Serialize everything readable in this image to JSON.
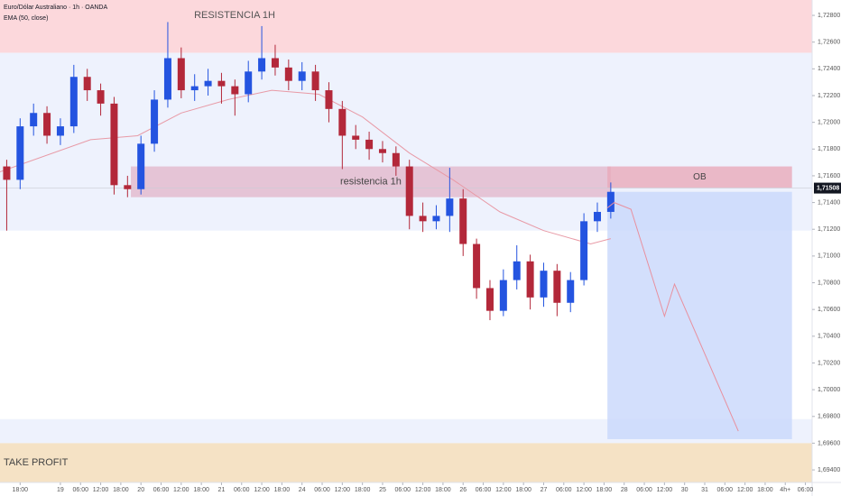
{
  "chart_data": {
    "type": "candlestick",
    "title": "Euro/Dólar Australiano · 1h · OANDA",
    "subtitle": "EMA (50, close)",
    "ylim": [
      1.69306,
      1.72915
    ],
    "xlim": [
      0,
      242
    ],
    "grid": false,
    "up_color": "#2454e0",
    "down_color": "#b3283a",
    "yticks": [
      {
        "value": 1.728,
        "label": "1,72800"
      },
      {
        "value": 1.726,
        "label": "1,72600"
      },
      {
        "value": 1.724,
        "label": "1,72400"
      },
      {
        "value": 1.722,
        "label": "1,72200"
      },
      {
        "value": 1.72,
        "label": "1,72000"
      },
      {
        "value": 1.718,
        "label": "1,71800"
      },
      {
        "value": 1.716,
        "label": "1,71600"
      },
      {
        "value": 1.714,
        "label": "1,71400"
      },
      {
        "value": 1.712,
        "label": "1,71200"
      },
      {
        "value": 1.71,
        "label": "1,71000"
      },
      {
        "value": 1.708,
        "label": "1,70800"
      },
      {
        "value": 1.706,
        "label": "1,70600"
      },
      {
        "value": 1.704,
        "label": "1,70400"
      },
      {
        "value": 1.702,
        "label": "1,70200"
      },
      {
        "value": 1.7,
        "label": "1,70000"
      },
      {
        "value": 1.698,
        "label": "1,69800"
      },
      {
        "value": 1.696,
        "label": "1,69600"
      },
      {
        "value": 1.694,
        "label": "1,69400"
      }
    ],
    "xticks": [
      {
        "value": 6,
        "label": "18:00"
      },
      {
        "value": 18,
        "label": "19"
      },
      {
        "value": 24,
        "label": "06:00"
      },
      {
        "value": 30,
        "label": "12:00"
      },
      {
        "value": 36,
        "label": "18:00"
      },
      {
        "value": 42,
        "label": "20"
      },
      {
        "value": 48,
        "label": "06:00"
      },
      {
        "value": 54,
        "label": "12:00"
      },
      {
        "value": 60,
        "label": "18:00"
      },
      {
        "value": 66,
        "label": "21"
      },
      {
        "value": 72,
        "label": "06:00"
      },
      {
        "value": 78,
        "label": "12:00"
      },
      {
        "value": 84,
        "label": "18:00"
      },
      {
        "value": 90,
        "label": "24"
      },
      {
        "value": 96,
        "label": "06:00"
      },
      {
        "value": 102,
        "label": "12:00"
      },
      {
        "value": 108,
        "label": "18:00"
      },
      {
        "value": 114,
        "label": "25"
      },
      {
        "value": 120,
        "label": "06:00"
      },
      {
        "value": 126,
        "label": "12:00"
      },
      {
        "value": 132,
        "label": "18:00"
      },
      {
        "value": 138,
        "label": "26"
      },
      {
        "value": 144,
        "label": "06:00"
      },
      {
        "value": 150,
        "label": "12:00"
      },
      {
        "value": 156,
        "label": "18:00"
      },
      {
        "value": 162,
        "label": "27"
      },
      {
        "value": 168,
        "label": "06:00"
      },
      {
        "value": 174,
        "label": "12:00"
      },
      {
        "value": 180,
        "label": "18:00"
      },
      {
        "value": 186,
        "label": "28"
      },
      {
        "value": 192,
        "label": "06:00"
      },
      {
        "value": 198,
        "label": "12:00"
      },
      {
        "value": 204,
        "label": "30"
      },
      {
        "value": 210,
        "label": "31"
      },
      {
        "value": 216,
        "label": "06:00"
      },
      {
        "value": 222,
        "label": "12:00"
      },
      {
        "value": 228,
        "label": "18:00"
      },
      {
        "value": 234,
        "label": "4h+"
      },
      {
        "value": 240,
        "label": "06:00"
      }
    ],
    "last_price": {
      "value": 1.71508,
      "label": "1,71508"
    },
    "zones": [
      {
        "label": "RESISTENCIA 1H",
        "range": [
          1.7252,
          1.7292
        ],
        "color": "#fcd8dc"
      },
      {
        "range": [
          1.7119,
          1.7252
        ],
        "color": "#eef2fd"
      },
      {
        "range": [
          1.696,
          1.6978
        ],
        "color": "#eef2fd"
      },
      {
        "label": "TAKE PROFIT",
        "range": [
          1.693,
          1.696
        ],
        "color": "#f5e2c5"
      },
      {
        "label": "resistencia 1h",
        "range": [
          1.7144,
          1.7167
        ],
        "x": [
          39,
          182
        ],
        "color": "#e2b8cc"
      },
      {
        "range": [
          1.6963,
          1.7148
        ],
        "x": [
          181,
          236
        ],
        "color": "#c8d7fb"
      },
      {
        "label": "OB",
        "range": [
          1.7151,
          1.7167
        ],
        "x": [
          181,
          236
        ],
        "color": "#e8a9b9"
      }
    ],
    "x": [
      2,
      6,
      10,
      14,
      18,
      22,
      26,
      30,
      34,
      38,
      42,
      46,
      50,
      54,
      58,
      62,
      66,
      70,
      74,
      78,
      82,
      86,
      90,
      94,
      98,
      102,
      106,
      110,
      114,
      118,
      122,
      126,
      130,
      134,
      138,
      142,
      146,
      150,
      154,
      158,
      162,
      166,
      170,
      174,
      178,
      182
    ],
    "open": [
      1.7167,
      1.7157,
      1.7197,
      1.7207,
      1.719,
      1.7197,
      1.7234,
      1.7224,
      1.7214,
      1.7153,
      1.715,
      1.7184,
      1.7217,
      1.7248,
      1.7224,
      1.7227,
      1.7231,
      1.7227,
      1.7221,
      1.7238,
      1.7248,
      1.7241,
      1.7231,
      1.7238,
      1.7224,
      1.721,
      1.719,
      1.7187,
      1.718,
      1.7177,
      1.7167,
      1.713,
      1.7126,
      1.713,
      1.7143,
      1.7109,
      1.7076,
      1.7059,
      1.7082,
      1.7096,
      1.7069,
      1.7089,
      1.7065,
      1.7082,
      1.7126,
      1.7133
    ],
    "high": [
      1.7172,
      1.7203,
      1.7214,
      1.7212,
      1.7203,
      1.7243,
      1.724,
      1.7229,
      1.7219,
      1.716,
      1.719,
      1.7224,
      1.7275,
      1.7256,
      1.7236,
      1.724,
      1.7237,
      1.7232,
      1.7246,
      1.7272,
      1.7258,
      1.7247,
      1.7245,
      1.7243,
      1.723,
      1.7216,
      1.7198,
      1.7193,
      1.7186,
      1.7182,
      1.7172,
      1.714,
      1.7138,
      1.7166,
      1.715,
      1.7113,
      1.7082,
      1.709,
      1.7108,
      1.7101,
      1.7095,
      1.7094,
      1.7088,
      1.7132,
      1.714,
      1.7155
    ],
    "low": [
      1.7119,
      1.715,
      1.719,
      1.7184,
      1.7183,
      1.7192,
      1.7216,
      1.7205,
      1.7146,
      1.7144,
      1.7146,
      1.7178,
      1.7211,
      1.7218,
      1.7216,
      1.722,
      1.7214,
      1.7205,
      1.7215,
      1.7232,
      1.7235,
      1.7224,
      1.7224,
      1.7216,
      1.72,
      1.7165,
      1.718,
      1.7172,
      1.717,
      1.716,
      1.712,
      1.7118,
      1.712,
      1.7118,
      1.71,
      1.7068,
      1.7052,
      1.7055,
      1.7075,
      1.706,
      1.7062,
      1.7055,
      1.7058,
      1.7078,
      1.7118,
      1.7128
    ],
    "close": [
      1.7157,
      1.7197,
      1.7207,
      1.719,
      1.7197,
      1.7234,
      1.7224,
      1.7214,
      1.7153,
      1.715,
      1.7184,
      1.7217,
      1.7248,
      1.7224,
      1.7227,
      1.7231,
      1.7227,
      1.7221,
      1.7238,
      1.7248,
      1.7241,
      1.7231,
      1.7238,
      1.7224,
      1.721,
      1.719,
      1.7187,
      1.718,
      1.7177,
      1.7167,
      1.713,
      1.7126,
      1.713,
      1.7143,
      1.7109,
      1.7076,
      1.7059,
      1.7082,
      1.7096,
      1.7069,
      1.7089,
      1.7065,
      1.7082,
      1.7126,
      1.7133,
      1.7148
    ],
    "ema": {
      "color": "#e89aa6",
      "x": [
        0,
        27,
        41,
        54,
        68,
        81,
        95,
        108,
        122,
        135,
        149,
        162,
        176,
        182
      ],
      "values": [
        1.7163,
        1.7187,
        1.719,
        1.7207,
        1.7217,
        1.7224,
        1.7221,
        1.7204,
        1.7177,
        1.7157,
        1.7133,
        1.7119,
        1.7109,
        1.7113
      ]
    },
    "projection": {
      "color": "#e8909e",
      "x": [
        181,
        183,
        188,
        198,
        201,
        220
      ],
      "values": [
        1.7136,
        1.714,
        1.7135,
        1.7055,
        1.7079,
        1.6969
      ]
    }
  }
}
